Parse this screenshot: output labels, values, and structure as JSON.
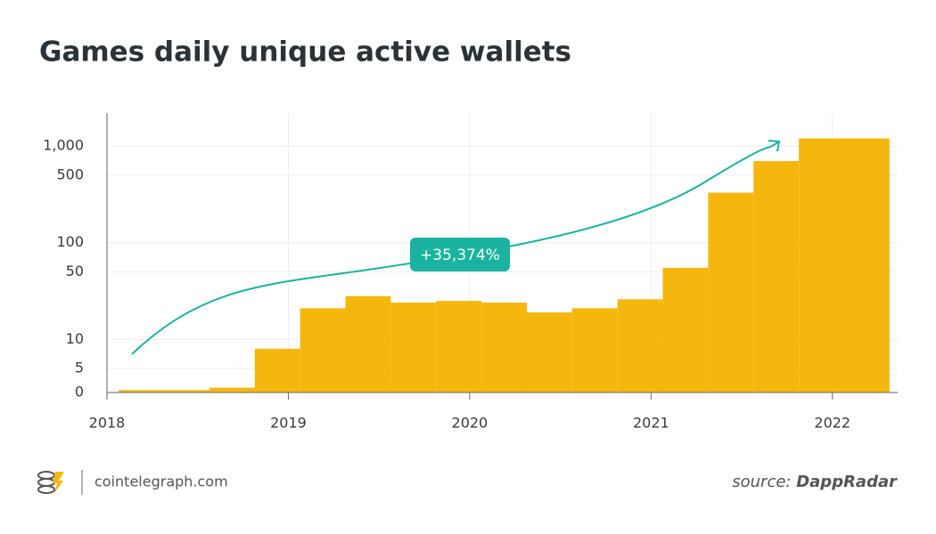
{
  "chart_data": {
    "type": "bar",
    "title": "Games daily unique active wallets",
    "annotation": "+35,374%",
    "categories": [
      null,
      null,
      null,
      null,
      null,
      null,
      null,
      null,
      null,
      null,
      null,
      null,
      null,
      null,
      null,
      null,
      null
    ],
    "x": [
      2018.19,
      2018.44,
      2018.69,
      2018.94,
      2019.19,
      2019.44,
      2019.69,
      2019.94,
      2020.19,
      2020.44,
      2020.69,
      2020.94,
      2021.19,
      2021.44,
      2021.69,
      2021.94,
      2022.19
    ],
    "values": [
      0.5,
      0.5,
      1,
      8,
      21,
      28,
      24,
      25,
      24,
      19,
      21,
      26,
      55,
      330,
      700,
      1200,
      1200
    ],
    "color": "#f5b70d",
    "xlim": [
      2018,
      2022.36
    ],
    "xticks": [
      2018,
      2019,
      2020,
      2021,
      2022
    ],
    "ylim": [
      0,
      2200
    ],
    "yscale": "symlog",
    "yticks": [
      0,
      5,
      10,
      50,
      100,
      500,
      {
        "value": 1000,
        "label": "1,000"
      }
    ],
    "grid": true,
    "footer": {
      "site": "cointelegraph.com",
      "source_label": "source:",
      "source_name": "DappRadar"
    }
  }
}
